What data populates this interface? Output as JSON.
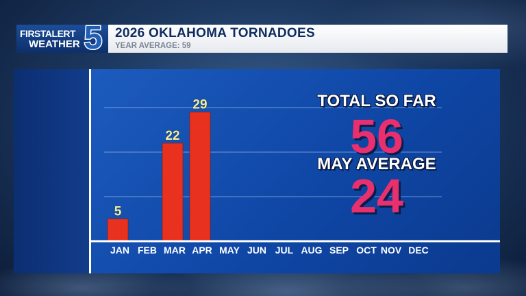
{
  "header": {
    "logo_line1": "FIRST",
    "logo_line1_alert": "ALERT",
    "logo_line2": "WEATHER",
    "logo_number": "5",
    "title": "2026 OKLAHOMA TORNADOES",
    "subtitle": "YEAR AVERAGE: 59"
  },
  "stats": {
    "total_label": "TOTAL SO FAR",
    "total_value": "56",
    "may_label": "MAY AVERAGE",
    "may_value": "24"
  },
  "colors": {
    "bar": "#e8311f",
    "bar_label": "#f5f09a",
    "stat_value": "#ea2f6e",
    "board": "#1456b5"
  },
  "chart_data": {
    "type": "bar",
    "categories": [
      "JAN",
      "FEB",
      "MAR",
      "APR",
      "MAY",
      "JUN",
      "JUL",
      "AUG",
      "SEP",
      "OCT",
      "NOV",
      "DEC"
    ],
    "series": [
      {
        "values": [
          5,
          null,
          22,
          29,
          null,
          null,
          null,
          null,
          null,
          null,
          null,
          null
        ]
      }
    ],
    "data_labels": [
      "5",
      "",
      "22",
      "29",
      "",
      "",
      "",
      "",
      "",
      "",
      "",
      ""
    ],
    "ylim": [
      0,
      30
    ],
    "grid": true,
    "legend": "none"
  }
}
